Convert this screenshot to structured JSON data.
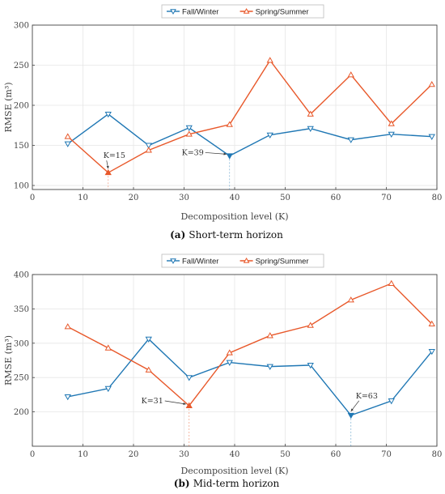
{
  "colors": {
    "fall": "#1f77b4",
    "spring": "#e8582a",
    "marker_fill": "#ffffff"
  },
  "chart_data": [
    {
      "type": "line",
      "caption_label": "(a)",
      "caption_text": "Short-term horizon",
      "xlabel": "Decomposition level (K)",
      "ylabel": "RMSE (m³)",
      "xlim": [
        0,
        80
      ],
      "ylim": [
        95,
        300
      ],
      "xticks": [
        0,
        10,
        20,
        30,
        40,
        50,
        60,
        70,
        80
      ],
      "yticks": [
        100,
        150,
        200,
        250,
        300
      ],
      "grid": true,
      "legend": "top-center",
      "x": [
        7,
        15,
        23,
        31,
        39,
        47,
        55,
        63,
        71,
        79
      ],
      "series": [
        {
          "name": "Fall/Winter",
          "color": "#1f77b4",
          "marker": "triangle-down",
          "values": [
            152,
            189,
            150,
            172,
            137,
            163,
            171,
            157,
            164,
            161
          ]
        },
        {
          "name": "Spring/Summer",
          "color": "#e8582a",
          "marker": "triangle-up",
          "values": [
            161,
            116,
            144,
            164,
            176,
            256,
            189,
            238,
            177,
            226
          ]
        }
      ],
      "annotations": [
        {
          "text": "K=15",
          "x": 15,
          "y": 116,
          "series": "Spring/Summer"
        },
        {
          "text": "K=39",
          "x": 39,
          "y": 137,
          "series": "Fall/Winter"
        }
      ]
    },
    {
      "type": "line",
      "caption_label": "(b)",
      "caption_text": "Mid-term horizon",
      "xlabel": "Decomposition level (K)",
      "ylabel": "RMSE (m³)",
      "xlim": [
        0,
        80
      ],
      "ylim": [
        150,
        400
      ],
      "xticks": [
        0,
        10,
        20,
        30,
        40,
        50,
        60,
        70,
        80
      ],
      "yticks": [
        200,
        250,
        300,
        350,
        400
      ],
      "grid": true,
      "legend": "top-center",
      "x": [
        7,
        15,
        23,
        31,
        39,
        47,
        55,
        63,
        71,
        79
      ],
      "series": [
        {
          "name": "Fall/Winter",
          "color": "#1f77b4",
          "marker": "triangle-down",
          "values": [
            222,
            234,
            306,
            250,
            272,
            266,
            268,
            195,
            216,
            288
          ]
        },
        {
          "name": "Spring/Summer",
          "color": "#e8582a",
          "marker": "triangle-up",
          "values": [
            324,
            293,
            261,
            209,
            286,
            311,
            326,
            363,
            387,
            328
          ]
        }
      ],
      "annotations": [
        {
          "text": "K=31",
          "x": 31,
          "y": 209,
          "series": "Spring/Summer"
        },
        {
          "text": "K=63",
          "x": 63,
          "y": 195,
          "series": "Fall/Winter"
        }
      ]
    }
  ]
}
